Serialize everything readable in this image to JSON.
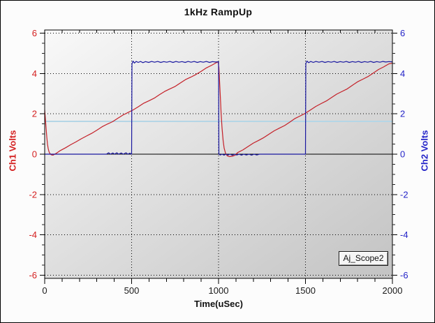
{
  "window": {
    "name": "oscilloscope-display"
  },
  "chart_data": {
    "type": "line",
    "title": "1kHz RampUp",
    "xlabel": "Time(uSec)",
    "ylabel_left": "Ch1 Volts",
    "ylabel_right": "Ch2 Volts",
    "annotation": "Aj_Scope2",
    "xlim": [
      0,
      2000
    ],
    "ylim": [
      -6,
      6
    ],
    "x_major_ticks": [
      0,
      500,
      1000,
      1500,
      2000
    ],
    "x_minor_step": 100,
    "y_major_ticks": [
      6,
      4,
      2,
      0,
      -2,
      -4,
      -6
    ],
    "y_minor_step": 0.5,
    "grid": "dotted-black",
    "legend_position": "none",
    "trigger_level": 1.63,
    "colors": {
      "ch1_trace": "#c42028",
      "ch2_trace": "#1a18a0",
      "ch1_axis": "#d42020",
      "ch2_axis": "#2424c8",
      "x_axis_text": "#1a1a1a",
      "grid": "#000000",
      "trigger_line": "#b5d6e6",
      "plot_bg_light": "#f9f9f9",
      "plot_bg_dark": "#c3c3c3",
      "frame": "#000000"
    },
    "series": [
      {
        "name": "Ch1",
        "color_key": "ch1_trace",
        "points": [
          [
            0,
            2.2
          ],
          [
            4,
            1.75
          ],
          [
            8,
            1.3
          ],
          [
            12,
            0.85
          ],
          [
            16,
            0.5
          ],
          [
            20,
            0.28
          ],
          [
            25,
            0.12
          ],
          [
            30,
            0.03
          ],
          [
            38,
            -0.03
          ],
          [
            48,
            -0.05
          ],
          [
            58,
            0
          ],
          [
            70,
            0.06
          ],
          [
            90,
            0.18
          ],
          [
            120,
            0.32
          ],
          [
            150,
            0.47
          ],
          [
            180,
            0.61
          ],
          [
            210,
            0.76
          ],
          [
            240,
            0.9
          ],
          [
            270,
            1.03
          ],
          [
            300,
            1.19
          ],
          [
            330,
            1.36
          ],
          [
            360,
            1.49
          ],
          [
            390,
            1.61
          ],
          [
            420,
            1.78
          ],
          [
            450,
            1.94
          ],
          [
            480,
            2.07
          ],
          [
            510,
            2.2
          ],
          [
            540,
            2.36
          ],
          [
            570,
            2.53
          ],
          [
            600,
            2.65
          ],
          [
            630,
            2.78
          ],
          [
            660,
            2.95
          ],
          [
            690,
            3.11
          ],
          [
            720,
            3.24
          ],
          [
            750,
            3.36
          ],
          [
            780,
            3.53
          ],
          [
            810,
            3.7
          ],
          [
            840,
            3.82
          ],
          [
            870,
            3.95
          ],
          [
            900,
            4.11
          ],
          [
            930,
            4.28
          ],
          [
            960,
            4.41
          ],
          [
            985,
            4.53
          ],
          [
            997,
            4.58
          ],
          [
            1002,
            4.3
          ],
          [
            1006,
            3.6
          ],
          [
            1010,
            2.9
          ],
          [
            1015,
            2.0
          ],
          [
            1020,
            1.3
          ],
          [
            1026,
            0.7
          ],
          [
            1032,
            0.3
          ],
          [
            1040,
            0.05
          ],
          [
            1050,
            -0.08
          ],
          [
            1062,
            -0.12
          ],
          [
            1080,
            -0.1
          ],
          [
            1095,
            -0.05
          ],
          [
            1110,
            0.08
          ],
          [
            1140,
            0.21
          ],
          [
            1170,
            0.38
          ],
          [
            1200,
            0.55
          ],
          [
            1230,
            0.68
          ],
          [
            1260,
            0.82
          ],
          [
            1290,
            0.99
          ],
          [
            1320,
            1.16
          ],
          [
            1350,
            1.29
          ],
          [
            1380,
            1.42
          ],
          [
            1410,
            1.59
          ],
          [
            1440,
            1.77
          ],
          [
            1470,
            1.9
          ],
          [
            1500,
            2.03
          ],
          [
            1530,
            2.2
          ],
          [
            1560,
            2.37
          ],
          [
            1590,
            2.51
          ],
          [
            1620,
            2.64
          ],
          [
            1650,
            2.81
          ],
          [
            1680,
            2.98
          ],
          [
            1710,
            3.11
          ],
          [
            1740,
            3.24
          ],
          [
            1770,
            3.42
          ],
          [
            1800,
            3.59
          ],
          [
            1830,
            3.72
          ],
          [
            1860,
            3.85
          ],
          [
            1890,
            4.02
          ],
          [
            1920,
            4.2
          ],
          [
            1950,
            4.33
          ],
          [
            1980,
            4.48
          ],
          [
            2000,
            4.52
          ]
        ]
      },
      {
        "name": "Ch2",
        "color_key": "ch2_trace",
        "points": [
          [
            0,
            0
          ],
          [
            150,
            0
          ],
          [
            300,
            0
          ],
          [
            355,
            0
          ],
          [
            368,
            0.07
          ],
          [
            378,
            0
          ],
          [
            392,
            0.06
          ],
          [
            402,
            0
          ],
          [
            415,
            0.07
          ],
          [
            425,
            0
          ],
          [
            440,
            0.06
          ],
          [
            452,
            0
          ],
          [
            468,
            0.07
          ],
          [
            478,
            0
          ],
          [
            490,
            0.05
          ],
          [
            500,
            0
          ],
          [
            502,
            4.48
          ],
          [
            508,
            4.62
          ],
          [
            516,
            4.52
          ],
          [
            526,
            4.6
          ],
          [
            538,
            4.55
          ],
          [
            552,
            4.6
          ],
          [
            565,
            4.54
          ],
          [
            580,
            4.59
          ],
          [
            598,
            4.55
          ],
          [
            615,
            4.6
          ],
          [
            632,
            4.56
          ],
          [
            650,
            4.6
          ],
          [
            668,
            4.55
          ],
          [
            685,
            4.59
          ],
          [
            702,
            4.56
          ],
          [
            720,
            4.6
          ],
          [
            738,
            4.55
          ],
          [
            755,
            4.6
          ],
          [
            772,
            4.56
          ],
          [
            790,
            4.59
          ],
          [
            808,
            4.55
          ],
          [
            825,
            4.6
          ],
          [
            842,
            4.56
          ],
          [
            860,
            4.6
          ],
          [
            878,
            4.55
          ],
          [
            895,
            4.59
          ],
          [
            912,
            4.56
          ],
          [
            930,
            4.6
          ],
          [
            948,
            4.55
          ],
          [
            965,
            4.59
          ],
          [
            982,
            4.57
          ],
          [
            1000,
            4.58
          ],
          [
            1002,
            0
          ],
          [
            1010,
            -0.04
          ],
          [
            1020,
            0
          ],
          [
            1032,
            -0.05
          ],
          [
            1042,
            0
          ],
          [
            1055,
            -0.04
          ],
          [
            1065,
            0
          ],
          [
            1080,
            -0.05
          ],
          [
            1092,
            0
          ],
          [
            1105,
            -0.04
          ],
          [
            1118,
            0
          ],
          [
            1132,
            -0.05
          ],
          [
            1145,
            0
          ],
          [
            1160,
            -0.04
          ],
          [
            1175,
            0
          ],
          [
            1190,
            -0.05
          ],
          [
            1205,
            0
          ],
          [
            1220,
            -0.04
          ],
          [
            1235,
            0
          ],
          [
            1320,
            0
          ],
          [
            1420,
            0
          ],
          [
            1500,
            0
          ],
          [
            1502,
            4.5
          ],
          [
            1508,
            4.62
          ],
          [
            1518,
            4.54
          ],
          [
            1530,
            4.6
          ],
          [
            1545,
            4.55
          ],
          [
            1560,
            4.6
          ],
          [
            1578,
            4.56
          ],
          [
            1595,
            4.6
          ],
          [
            1612,
            4.55
          ],
          [
            1630,
            4.59
          ],
          [
            1648,
            4.56
          ],
          [
            1665,
            4.6
          ],
          [
            1682,
            4.55
          ],
          [
            1700,
            4.59
          ],
          [
            1718,
            4.56
          ],
          [
            1735,
            4.6
          ],
          [
            1752,
            4.55
          ],
          [
            1770,
            4.59
          ],
          [
            1788,
            4.56
          ],
          [
            1805,
            4.6
          ],
          [
            1822,
            4.55
          ],
          [
            1840,
            4.59
          ],
          [
            1858,
            4.56
          ],
          [
            1875,
            4.6
          ],
          [
            1892,
            4.55
          ],
          [
            1910,
            4.59
          ],
          [
            1928,
            4.56
          ],
          [
            1945,
            4.6
          ],
          [
            1962,
            4.57
          ],
          [
            1980,
            4.59
          ],
          [
            2000,
            4.58
          ]
        ]
      }
    ]
  }
}
